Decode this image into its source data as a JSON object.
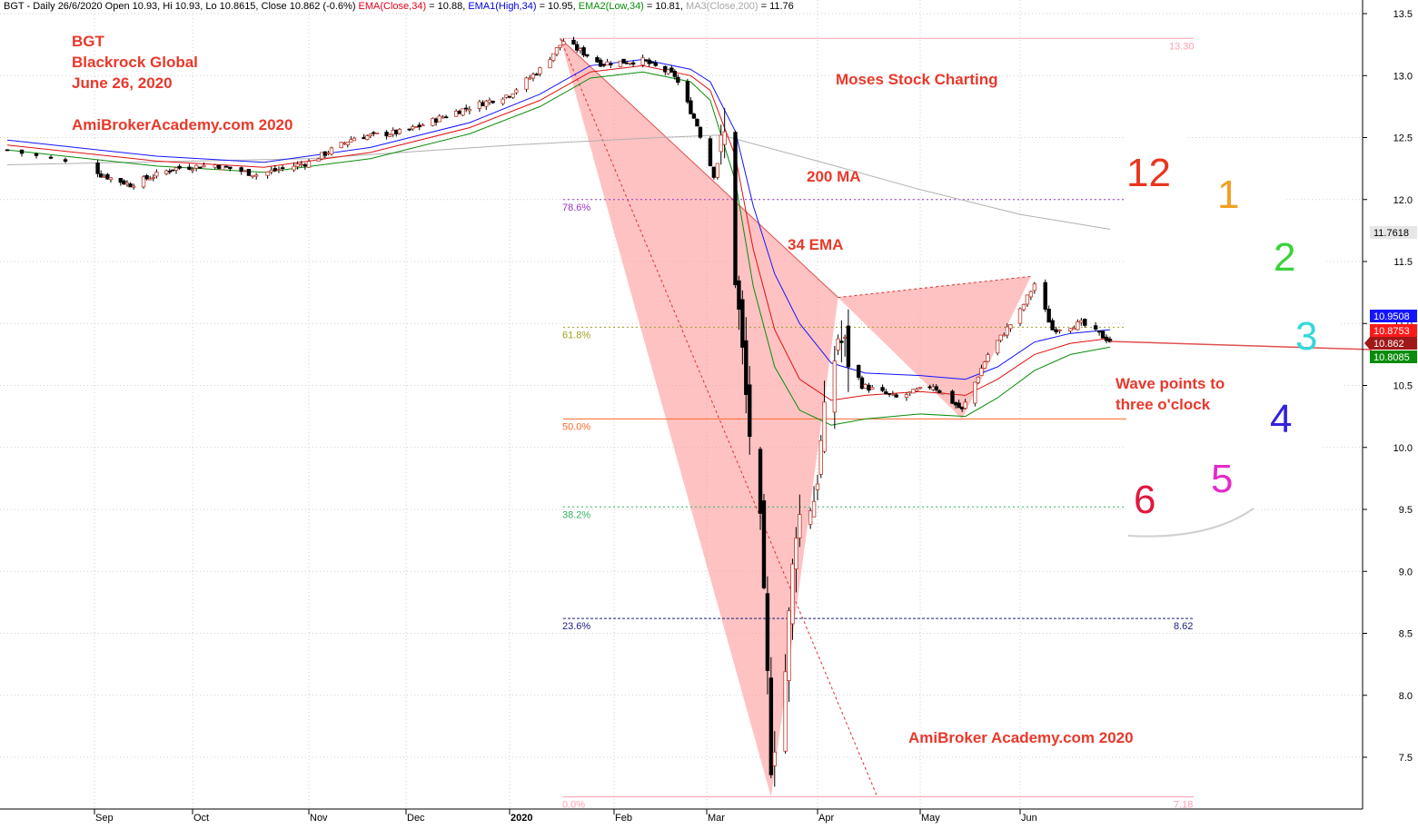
{
  "header": {
    "symbol_info": "BGT - Daily 26/6/2020 Open 10.93, Hi 10.93, Lo 10.8615, Close 10.862 (-0.6%)",
    "ema_label": "EMA(Close,34)",
    "ema_value": " = 10.88, ",
    "ema1_label": "EMA1(High,34)",
    "ema1_value": " = 10.95, ",
    "ema2_label": "EMA2(Low,34)",
    "ema2_value": " = 10.81, ",
    "ma3_label": "MA3(Close,200)",
    "ma3_value": " = 11.76"
  },
  "annotations": {
    "ticker": "BGT",
    "company": "Blackrock Global",
    "date": "June 26, 2020",
    "site_top": "AmiBroker​Academy.com 2020",
    "brand": "Moses Stock Charting",
    "ma_label": "200 MA",
    "ema_label": "34 EMA",
    "wave_line1": "Wave points to",
    "wave_line2": "three o'clock",
    "site_bottom": "AmiBroker Academy.com  2020"
  },
  "clock_numbers": [
    {
      "label": "12",
      "color": "#e8351f"
    },
    {
      "label": "1",
      "color": "#f0a020"
    },
    {
      "label": "2",
      "color": "#38d23a"
    },
    {
      "label": "3",
      "color": "#37d8d8"
    },
    {
      "label": "4",
      "color": "#3322e0"
    },
    {
      "label": "5",
      "color": "#e42bc8"
    },
    {
      "label": "6",
      "color": "#e0173c"
    }
  ],
  "chart_data": {
    "type": "candlestick",
    "x_labels": [
      "Sep",
      "Oct",
      "Nov",
      "Dec",
      "2020",
      "Feb",
      "Mar",
      "Apr",
      "May",
      "Jun"
    ],
    "y_ticks": [
      7.5,
      8.0,
      8.5,
      9.0,
      9.5,
      10.0,
      10.5,
      11.0,
      11.5,
      12.0,
      12.5,
      13.0,
      13.5
    ],
    "ylim": [
      7.0,
      13.65
    ],
    "fib_levels": [
      {
        "label": "78.6%",
        "value": 12.0,
        "color": "#9933cc",
        "style": "dotted"
      },
      {
        "label": "61.8%",
        "value": 10.97,
        "color": "#a0a020",
        "style": "dotted"
      },
      {
        "label": "50.0%",
        "value": 10.23,
        "color": "#ff6a2b",
        "style": "solid"
      },
      {
        "label": "38.2%",
        "value": 9.52,
        "color": "#30b060",
        "style": "dotted"
      },
      {
        "label": "23.6%",
        "value": 8.62,
        "color": "#1a237e",
        "style": "dashed",
        "right_label": "8.62"
      },
      {
        "label": "0.0%",
        "value": 7.18,
        "color": "#ff9fb0",
        "style": "solid",
        "right_label": "7.18"
      }
    ],
    "top_level": {
      "value": 13.3,
      "label": "13.30",
      "color": "#ff9fb0"
    },
    "price_tags": [
      {
        "value": 11.7618,
        "label": "11.7618",
        "bg": "#e6e6e6",
        "fg": "#000000"
      },
      {
        "value": 10.9508,
        "label": "10.9508",
        "bg": "#1414ff",
        "fg": "#ffffff"
      },
      {
        "value": 10.8753,
        "label": "10.8753",
        "bg": "#ff1a1a",
        "fg": "#ffffff"
      },
      {
        "value": 10.862,
        "label": "10.862",
        "bg": "#a01818",
        "fg": "#ffffff"
      },
      {
        "value": 10.8085,
        "label": "10.8085",
        "bg": "#0a8c0a",
        "fg": "#ffffff"
      }
    ],
    "harmonic_pattern": {
      "X": {
        "date": "2020-01-16",
        "price": 13.3
      },
      "A": {
        "date": "2020-03-19",
        "price": 7.18
      },
      "B": {
        "date": "2020-04-07",
        "price": 11.21
      },
      "C": {
        "date": "2020-05-14",
        "price": 10.23
      },
      "D": {
        "date": "2020-06-04",
        "price": 11.38
      },
      "color": "#ff9999"
    },
    "ma200": [
      {
        "date": "2019-08-26",
        "value": 12.28
      },
      {
        "date": "2019-11-01",
        "value": 12.33
      },
      {
        "date": "2020-01-02",
        "value": 12.44
      },
      {
        "date": "2020-02-15",
        "value": 12.5
      },
      {
        "date": "2020-03-05",
        "value": 12.52
      },
      {
        "date": "2020-04-01",
        "value": 12.31
      },
      {
        "date": "2020-05-01",
        "value": 12.08
      },
      {
        "date": "2020-06-01",
        "value": 11.88
      },
      {
        "date": "2020-06-26",
        "value": 11.76
      }
    ],
    "ema_high": [
      {
        "date": "2019-08-26",
        "value": 12.48
      },
      {
        "date": "2019-09-20",
        "value": 12.35
      },
      {
        "date": "2019-10-20",
        "value": 12.3
      },
      {
        "date": "2019-11-20",
        "value": 12.42
      },
      {
        "date": "2019-12-20",
        "value": 12.62
      },
      {
        "date": "2020-01-10",
        "value": 12.85
      },
      {
        "date": "2020-01-25",
        "value": 13.08
      },
      {
        "date": "2020-02-10",
        "value": 13.13
      },
      {
        "date": "2020-02-25",
        "value": 13.05
      },
      {
        "date": "2020-03-02",
        "value": 12.95
      },
      {
        "date": "2020-03-09",
        "value": 12.55
      },
      {
        "date": "2020-03-14",
        "value": 11.95
      },
      {
        "date": "2020-03-20",
        "value": 11.4
      },
      {
        "date": "2020-03-27",
        "value": 11.0
      },
      {
        "date": "2020-04-05",
        "value": 10.68
      },
      {
        "date": "2020-04-15",
        "value": 10.6
      },
      {
        "date": "2020-05-01",
        "value": 10.58
      },
      {
        "date": "2020-05-15",
        "value": 10.55
      },
      {
        "date": "2020-05-25",
        "value": 10.65
      },
      {
        "date": "2020-06-05",
        "value": 10.85
      },
      {
        "date": "2020-06-15",
        "value": 10.92
      },
      {
        "date": "2020-06-26",
        "value": 10.95
      }
    ],
    "ema_close": [
      {
        "date": "2019-08-26",
        "value": 12.44
      },
      {
        "date": "2019-09-20",
        "value": 12.31
      },
      {
        "date": "2019-10-20",
        "value": 12.26
      },
      {
        "date": "2019-11-20",
        "value": 12.38
      },
      {
        "date": "2019-12-20",
        "value": 12.58
      },
      {
        "date": "2020-01-10",
        "value": 12.8
      },
      {
        "date": "2020-01-25",
        "value": 13.03
      },
      {
        "date": "2020-02-10",
        "value": 13.08
      },
      {
        "date": "2020-02-25",
        "value": 13.0
      },
      {
        "date": "2020-03-02",
        "value": 12.88
      },
      {
        "date": "2020-03-09",
        "value": 12.35
      },
      {
        "date": "2020-03-14",
        "value": 11.6
      },
      {
        "date": "2020-03-20",
        "value": 10.95
      },
      {
        "date": "2020-03-27",
        "value": 10.55
      },
      {
        "date": "2020-04-05",
        "value": 10.38
      },
      {
        "date": "2020-04-15",
        "value": 10.42
      },
      {
        "date": "2020-05-01",
        "value": 10.45
      },
      {
        "date": "2020-05-15",
        "value": 10.42
      },
      {
        "date": "2020-05-25",
        "value": 10.55
      },
      {
        "date": "2020-06-05",
        "value": 10.75
      },
      {
        "date": "2020-06-15",
        "value": 10.84
      },
      {
        "date": "2020-06-26",
        "value": 10.88
      }
    ],
    "ema_low": [
      {
        "date": "2019-08-26",
        "value": 12.4
      },
      {
        "date": "2019-09-20",
        "value": 12.27
      },
      {
        "date": "2019-10-20",
        "value": 12.22
      },
      {
        "date": "2019-11-20",
        "value": 12.33
      },
      {
        "date": "2019-12-20",
        "value": 12.53
      },
      {
        "date": "2020-01-10",
        "value": 12.75
      },
      {
        "date": "2020-01-25",
        "value": 12.98
      },
      {
        "date": "2020-02-10",
        "value": 13.03
      },
      {
        "date": "2020-02-25",
        "value": 12.95
      },
      {
        "date": "2020-03-02",
        "value": 12.8
      },
      {
        "date": "2020-03-09",
        "value": 12.15
      },
      {
        "date": "2020-03-14",
        "value": 11.3
      },
      {
        "date": "2020-03-20",
        "value": 10.65
      },
      {
        "date": "2020-03-27",
        "value": 10.3
      },
      {
        "date": "2020-04-05",
        "value": 10.18
      },
      {
        "date": "2020-04-15",
        "value": 10.23
      },
      {
        "date": "2020-05-01",
        "value": 10.27
      },
      {
        "date": "2020-05-15",
        "value": 10.25
      },
      {
        "date": "2020-05-25",
        "value": 10.4
      },
      {
        "date": "2020-06-05",
        "value": 10.62
      },
      {
        "date": "2020-06-15",
        "value": 10.75
      },
      {
        "date": "2020-06-26",
        "value": 10.81
      }
    ],
    "price_path": [
      {
        "date": "2019-08-26",
        "value": 12.4
      },
      {
        "date": "2019-09-03",
        "value": 12.2
      },
      {
        "date": "2019-09-12",
        "value": 12.12
      },
      {
        "date": "2019-09-25",
        "value": 12.25
      },
      {
        "date": "2019-10-07",
        "value": 12.28
      },
      {
        "date": "2019-10-18",
        "value": 12.2
      },
      {
        "date": "2019-11-01",
        "value": 12.3
      },
      {
        "date": "2019-11-15",
        "value": 12.5
      },
      {
        "date": "2019-12-01",
        "value": 12.55
      },
      {
        "date": "2019-12-15",
        "value": 12.7
      },
      {
        "date": "2020-01-01",
        "value": 12.85
      },
      {
        "date": "2020-01-10",
        "value": 13.05
      },
      {
        "date": "2020-01-17",
        "value": 13.28
      },
      {
        "date": "2020-01-28",
        "value": 13.1
      },
      {
        "date": "2020-02-10",
        "value": 13.12
      },
      {
        "date": "2020-02-20",
        "value": 13.0
      },
      {
        "date": "2020-02-27",
        "value": 12.6
      },
      {
        "date": "2020-03-03",
        "value": 12.2
      },
      {
        "date": "2020-03-06",
        "value": 12.5
      },
      {
        "date": "2020-03-09",
        "value": 11.4
      },
      {
        "date": "2020-03-12",
        "value": 10.4
      },
      {
        "date": "2020-03-16",
        "value": 9.3
      },
      {
        "date": "2020-03-19",
        "value": 7.5
      },
      {
        "date": "2020-03-23",
        "value": 8.2
      },
      {
        "date": "2020-03-26",
        "value": 9.4
      },
      {
        "date": "2020-03-31",
        "value": 9.6
      },
      {
        "date": "2020-04-03",
        "value": 10.2
      },
      {
        "date": "2020-04-07",
        "value": 10.9
      },
      {
        "date": "2020-04-14",
        "value": 10.5
      },
      {
        "date": "2020-04-24",
        "value": 10.4
      },
      {
        "date": "2020-05-05",
        "value": 10.5
      },
      {
        "date": "2020-05-14",
        "value": 10.3
      },
      {
        "date": "2020-05-22",
        "value": 10.75
      },
      {
        "date": "2020-06-01",
        "value": 11.1
      },
      {
        "date": "2020-06-05",
        "value": 11.32
      },
      {
        "date": "2020-06-10",
        "value": 10.95
      },
      {
        "date": "2020-06-18",
        "value": 11.0
      },
      {
        "date": "2020-06-26",
        "value": 10.86
      }
    ]
  }
}
